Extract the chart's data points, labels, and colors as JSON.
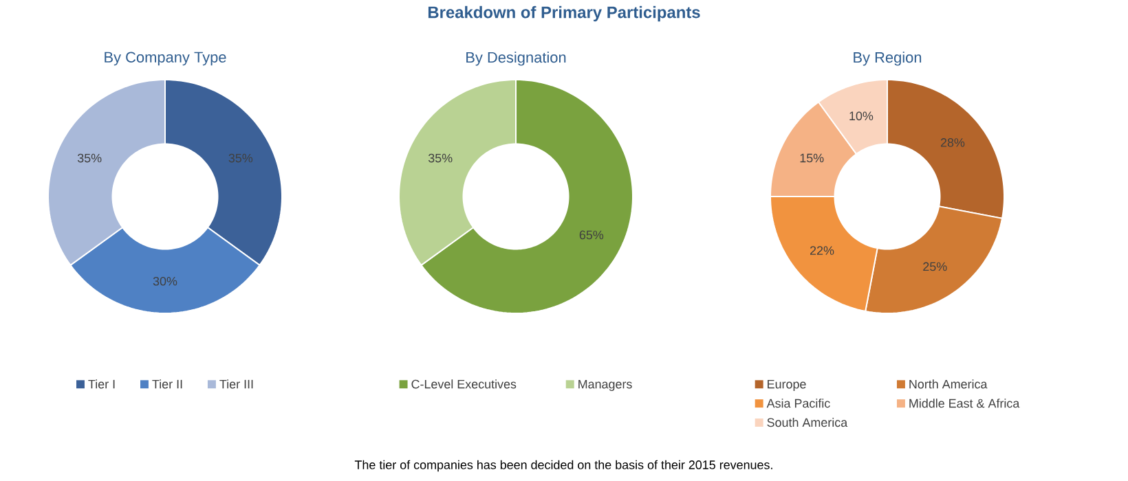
{
  "chart_data": [
    {
      "type": "donut",
      "title": "By Company Type",
      "categories": [
        "Tier I",
        "Tier II",
        "Tier III"
      ],
      "values": [
        35,
        30,
        35
      ],
      "value_labels": [
        "35%",
        "30%",
        "35%"
      ],
      "colors": [
        "#3c6198",
        "#4f81c4",
        "#a9b9d9"
      ],
      "legend": "bottom",
      "annotations": [
        "Breakdown of Primary Participants",
        "The tier of companies has been decided on the basis of their 2015 revenues."
      ]
    },
    {
      "type": "donut",
      "title": "By Designation",
      "categories": [
        "C-Level Executives",
        "Managers"
      ],
      "values": [
        65,
        35
      ],
      "value_labels": [
        "65%",
        "35%"
      ],
      "colors": [
        "#7aa23f",
        "#b9d293"
      ],
      "legend": "bottom"
    },
    {
      "type": "donut",
      "title": "By Region",
      "categories": [
        "Europe",
        "North America",
        "Asia Pacific",
        "Middle East & Africa",
        "South America"
      ],
      "values": [
        28,
        25,
        22,
        15,
        10
      ],
      "value_labels": [
        "28%",
        "25%",
        "22%",
        "15%",
        "10%"
      ],
      "colors": [
        "#b4652b",
        "#d07b34",
        "#f1933f",
        "#f5b285",
        "#fad4be"
      ],
      "legend": "bottom"
    }
  ]
}
